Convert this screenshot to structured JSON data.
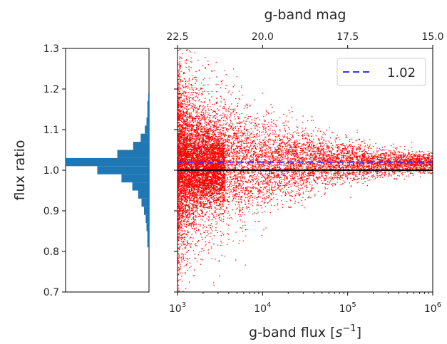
{
  "chart_data": [
    {
      "type": "histogram",
      "orientation": "horizontal",
      "ylabel": "flux ratio",
      "ylim": [
        0.7,
        1.3
      ],
      "yticks": [
        "0.7",
        "0.8",
        "0.9",
        "1.0",
        "1.1",
        "1.2",
        "1.3"
      ],
      "color": "#1f77b4",
      "bins": [
        {
          "y": 0.82,
          "count": 2
        },
        {
          "y": 0.84,
          "count": 2
        },
        {
          "y": 0.86,
          "count": 3
        },
        {
          "y": 0.88,
          "count": 4
        },
        {
          "y": 0.9,
          "count": 6
        },
        {
          "y": 0.92,
          "count": 9
        },
        {
          "y": 0.94,
          "count": 13
        },
        {
          "y": 0.96,
          "count": 20
        },
        {
          "y": 0.98,
          "count": 33
        },
        {
          "y": 1.0,
          "count": 62
        },
        {
          "y": 1.02,
          "count": 100
        },
        {
          "y": 1.04,
          "count": 38
        },
        {
          "y": 1.06,
          "count": 19
        },
        {
          "y": 1.08,
          "count": 10
        },
        {
          "y": 1.1,
          "count": 5
        },
        {
          "y": 1.12,
          "count": 3
        },
        {
          "y": 1.14,
          "count": 2
        },
        {
          "y": 1.16,
          "count": 2
        },
        {
          "y": 1.18,
          "count": 1
        }
      ]
    },
    {
      "type": "scatter",
      "xlabel": "g-band flux [s⁻¹]",
      "x2label": "g-band mag",
      "x_scale": "log",
      "xlim": [
        1000,
        1000000
      ],
      "ylim": [
        0.7,
        1.3
      ],
      "xticks": [
        {
          "value": 1000,
          "base": "10",
          "exp": "3"
        },
        {
          "value": 10000,
          "base": "10",
          "exp": "4"
        },
        {
          "value": 100000,
          "base": "10",
          "exp": "5"
        },
        {
          "value": 1000000,
          "base": "10",
          "exp": "6"
        }
      ],
      "x2ticks": [
        {
          "mag": 22.5,
          "label": "22.5"
        },
        {
          "mag": 20.0,
          "label": "20.0"
        },
        {
          "mag": 17.5,
          "label": "17.5"
        },
        {
          "mag": 15.0,
          "label": "15.0"
        }
      ],
      "point_color": "#ff0000",
      "approx_points": 9000,
      "scatter_center": 1.02,
      "reference_line": {
        "y": 1.0,
        "color": "#000000"
      },
      "median_line": {
        "y": 1.02,
        "color": "#3333ff",
        "style": "dashed"
      },
      "legend": {
        "entries": [
          "1.02"
        ],
        "placement": "top-right"
      }
    }
  ]
}
